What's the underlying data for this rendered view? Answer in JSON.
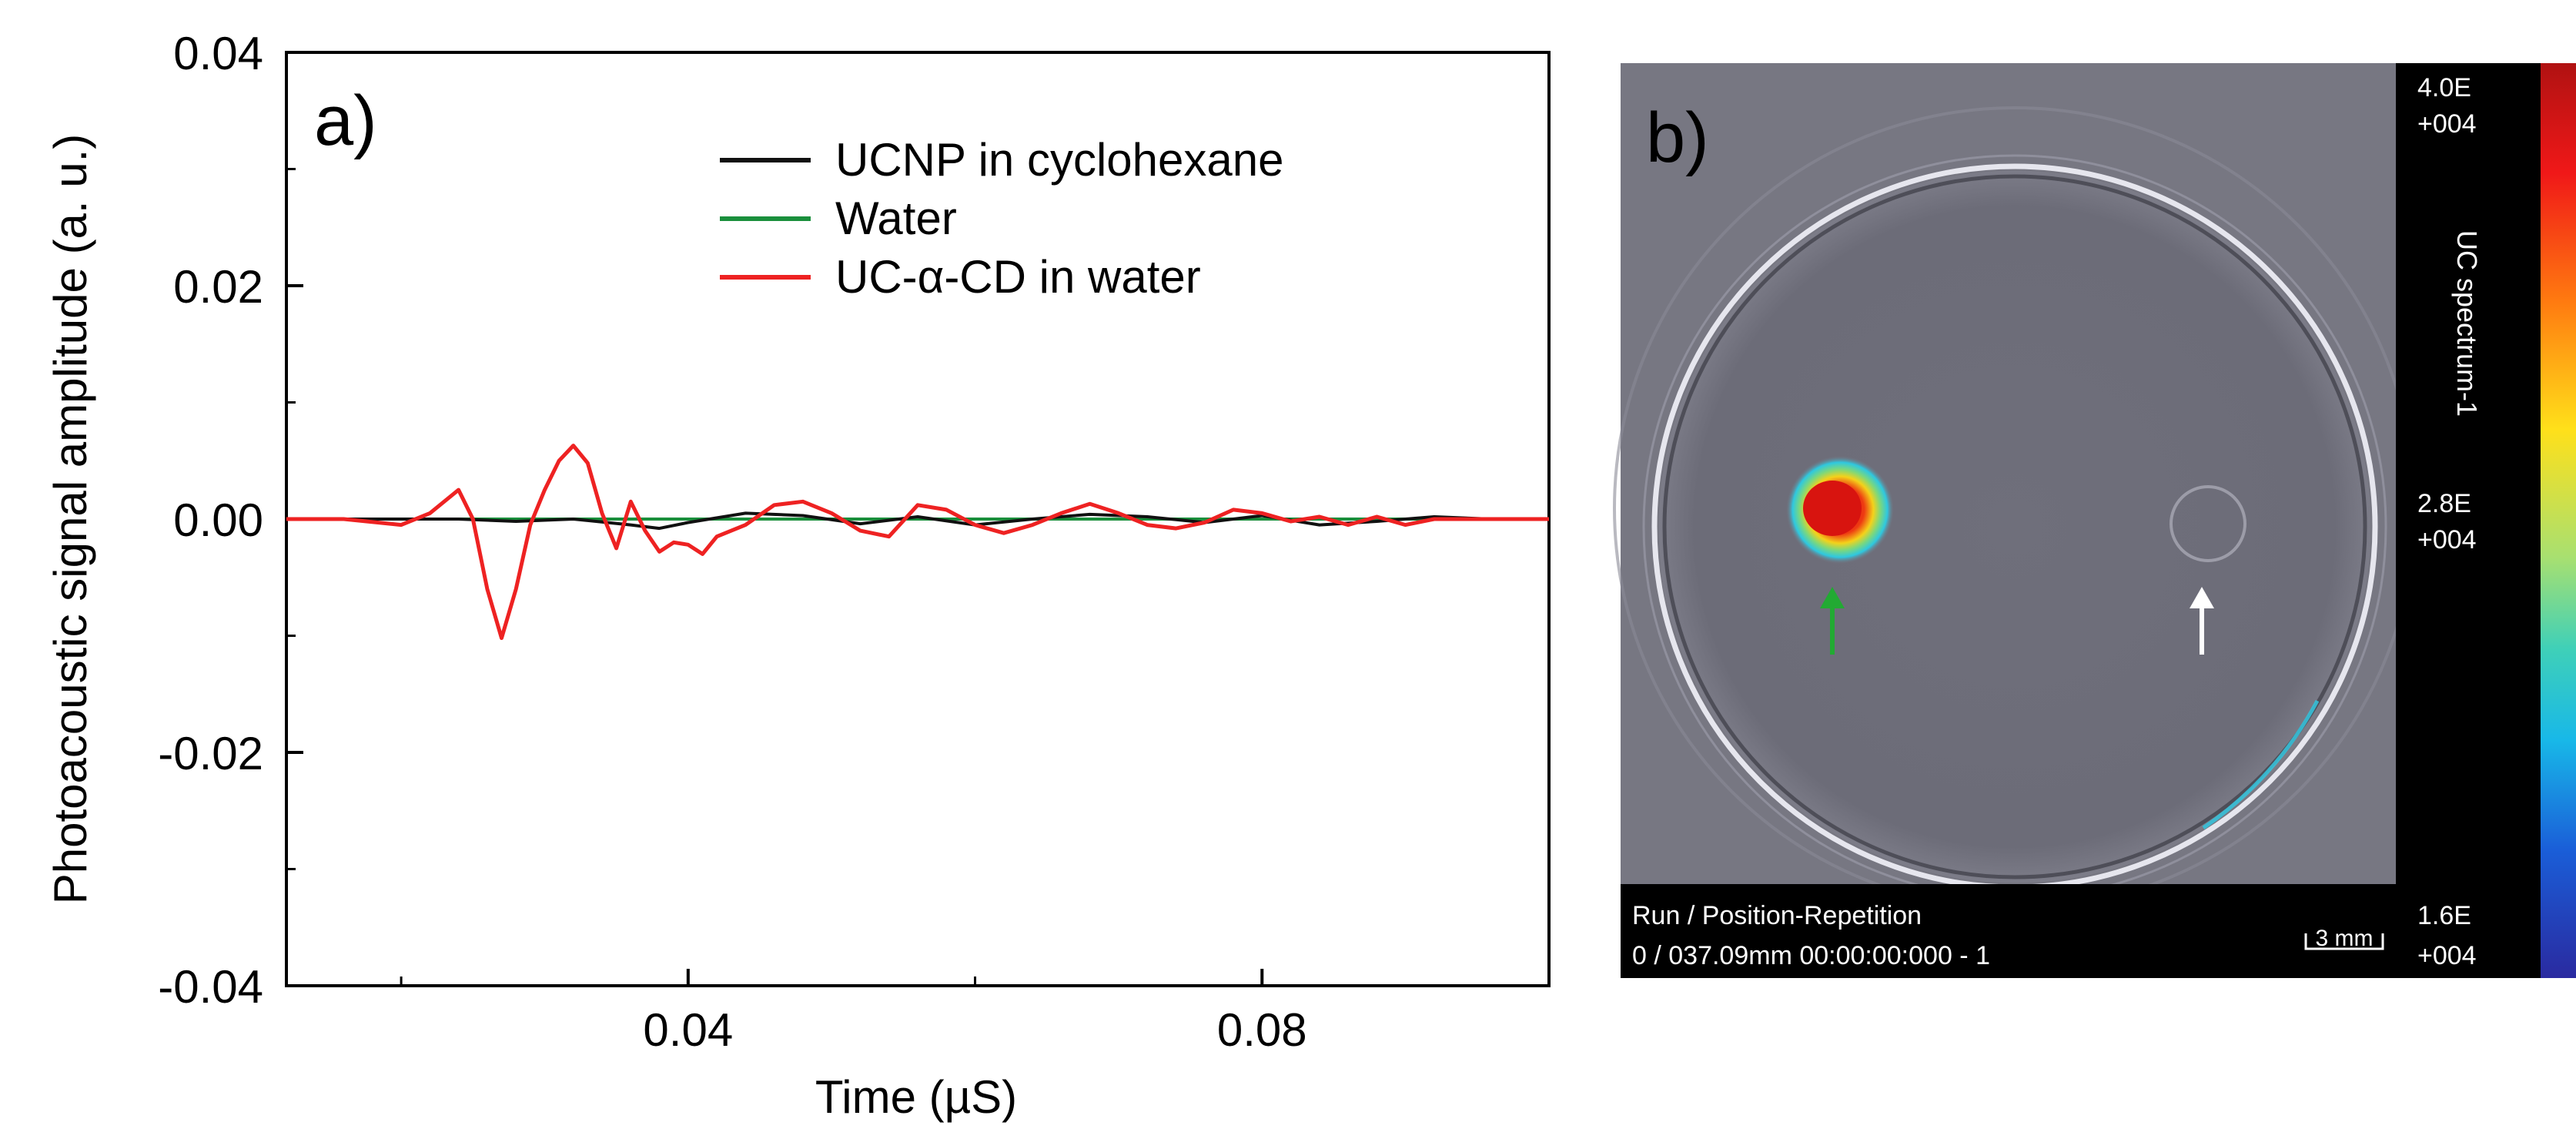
{
  "panel_a": {
    "label": "a)",
    "chart_data": {
      "type": "line",
      "title": "",
      "xlabel": "Time (µS)",
      "ylabel": "Photoacoustic signal amplitude (a. u.)",
      "xlim": [
        0.012,
        0.1
      ],
      "ylim": [
        -0.04,
        0.04
      ],
      "xticks": [
        0.04,
        0.08
      ],
      "xtick_labels": [
        "0.04",
        "0.08"
      ],
      "xminor_ticks": [
        0.02,
        0.06
      ],
      "yticks": [
        -0.04,
        -0.02,
        0.0,
        0.02,
        0.04
      ],
      "ytick_labels": [
        "-0.04",
        "-0.02",
        "0.00",
        "0.02",
        "0.04"
      ],
      "legend_position": "top-right",
      "series": [
        {
          "name": "UCNP in cyclohexane",
          "color": "#111111",
          "x": [
            0.012,
            0.016,
            0.02,
            0.024,
            0.028,
            0.032,
            0.036,
            0.038,
            0.04,
            0.044,
            0.048,
            0.052,
            0.056,
            0.06,
            0.064,
            0.068,
            0.072,
            0.076,
            0.08,
            0.084,
            0.088,
            0.092,
            0.096,
            0.1
          ],
          "y": [
            0.0,
            0.0,
            0.0,
            0.0,
            -0.0002,
            0.0,
            -0.0005,
            -0.0008,
            -0.0003,
            0.0005,
            0.0003,
            -0.0004,
            0.0002,
            -0.0005,
            0.0,
            0.0004,
            0.0002,
            -0.0003,
            0.0003,
            -0.0005,
            -0.0002,
            0.0002,
            0.0,
            0.0
          ]
        },
        {
          "name": "Water",
          "color": "#1a8f3c",
          "x": [
            0.012,
            0.02,
            0.03,
            0.04,
            0.05,
            0.06,
            0.07,
            0.08,
            0.09,
            0.1
          ],
          "y": [
            0.0,
            0.0,
            0.0,
            0.0,
            0.0,
            0.0,
            0.0,
            0.0,
            0.0,
            0.0
          ]
        },
        {
          "name": "UC-α-CD in water",
          "color": "#ee2222",
          "x": [
            0.012,
            0.016,
            0.02,
            0.022,
            0.024,
            0.025,
            0.026,
            0.027,
            0.028,
            0.029,
            0.03,
            0.031,
            0.032,
            0.033,
            0.034,
            0.035,
            0.036,
            0.037,
            0.038,
            0.039,
            0.04,
            0.041,
            0.042,
            0.044,
            0.046,
            0.048,
            0.05,
            0.052,
            0.054,
            0.056,
            0.058,
            0.06,
            0.062,
            0.064,
            0.066,
            0.068,
            0.07,
            0.072,
            0.074,
            0.076,
            0.078,
            0.08,
            0.082,
            0.084,
            0.086,
            0.088,
            0.09,
            0.092,
            0.094,
            0.1
          ],
          "y": [
            0.0,
            0.0,
            -0.0005,
            0.0005,
            0.0025,
            0.0,
            -0.006,
            -0.0102,
            -0.006,
            -0.0005,
            0.0025,
            0.005,
            0.0063,
            0.0048,
            0.0005,
            -0.0025,
            0.0015,
            -0.001,
            -0.0028,
            -0.002,
            -0.0022,
            -0.003,
            -0.0015,
            -0.0005,
            0.0012,
            0.0015,
            0.0005,
            -0.001,
            -0.0015,
            0.0012,
            0.0008,
            -0.0005,
            -0.0012,
            -0.0005,
            0.0005,
            0.0013,
            0.0005,
            -0.0005,
            -0.0008,
            -0.0003,
            0.0008,
            0.0005,
            -0.0002,
            0.0002,
            -0.0005,
            0.0002,
            -0.0005,
            0.0,
            0.0,
            0.0
          ]
        }
      ]
    }
  },
  "panel_b": {
    "label": "b)",
    "info_line1": "Run / Position-Repetition",
    "info_line2": "0 / 037.09mm 00:00:00:000 - 1",
    "scalebar_label": "3 mm",
    "colorbar_title": "UC spectrum-1",
    "colorbar_max_line1": "4.0E",
    "colorbar_max_line2": "+004",
    "colorbar_mid_line1": "2.8E",
    "colorbar_mid_line2": "+004",
    "colorbar_min_line1": "1.6E",
    "colorbar_min_line2": "+004",
    "arrow_left_color": "#22aa33",
    "arrow_right_color": "#ffffff"
  }
}
